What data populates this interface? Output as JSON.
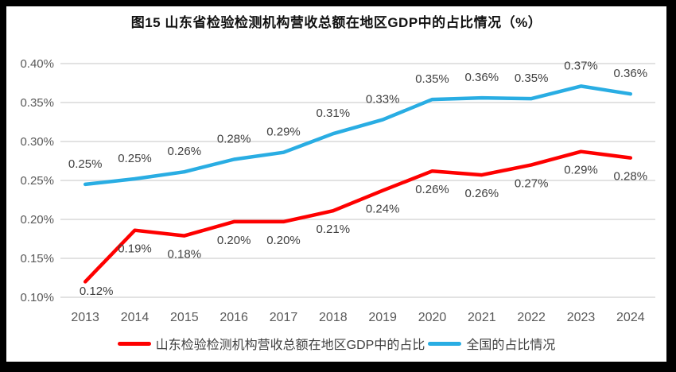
{
  "chart_data": {
    "type": "line",
    "title": "图15  山东省检验检测机构营收总额在地区GDP中的占比情况（%）",
    "unit": "%",
    "grid": "horizontal",
    "grid_color": "#d9d9d9",
    "background_color": "#ffffff",
    "frame_color": "#000000",
    "legend_position": "bottom",
    "ylim": [
      0.1,
      0.4
    ],
    "x_axis": {
      "categories": [
        "2013",
        "2014",
        "2015",
        "2016",
        "2017",
        "2018",
        "2019",
        "2020",
        "2021",
        "2022",
        "2023",
        "2024"
      ]
    },
    "y_axis": {
      "ticks": [
        {
          "label": "0.40%",
          "value": 0.4
        },
        {
          "label": "0.35%",
          "value": 0.35
        },
        {
          "label": "0.30%",
          "value": 0.3
        },
        {
          "label": "0.25%",
          "value": 0.25
        },
        {
          "label": "0.20%",
          "value": 0.2
        },
        {
          "label": "0.15%",
          "value": 0.15
        },
        {
          "label": "0.10%",
          "value": 0.1
        }
      ]
    },
    "series": [
      {
        "id": "shandong",
        "name": "山东检验检测机构营收总额在地区GDP中的占比",
        "color": "#fe0000",
        "label_position": "below",
        "values": [
          0.12,
          0.19,
          0.18,
          0.2,
          0.2,
          0.21,
          0.24,
          0.26,
          0.26,
          0.27,
          0.29,
          0.28
        ],
        "labels": [
          "0.12%",
          "0.19%",
          "0.18%",
          "0.20%",
          "0.20%",
          "0.21%",
          "0.24%",
          "0.26%",
          "0.26%",
          "0.27%",
          "0.29%",
          "0.28%"
        ],
        "plotted": [
          0.12,
          0.186,
          0.179,
          0.197,
          0.197,
          0.211,
          0.237,
          0.262,
          0.257,
          0.27,
          0.287,
          0.279
        ]
      },
      {
        "id": "national",
        "name": "全国的占比情况",
        "color": "#29ade3",
        "label_position": "above",
        "values": [
          0.25,
          0.25,
          0.26,
          0.28,
          0.29,
          0.31,
          0.33,
          0.35,
          0.36,
          0.35,
          0.37,
          0.36
        ],
        "labels": [
          "0.25%",
          "0.25%",
          "0.26%",
          "0.28%",
          "0.29%",
          "0.31%",
          "0.33%",
          "0.35%",
          "0.36%",
          "0.35%",
          "0.37%",
          "0.36%"
        ],
        "plotted": [
          0.245,
          0.252,
          0.261,
          0.277,
          0.286,
          0.31,
          0.328,
          0.354,
          0.356,
          0.355,
          0.371,
          0.361
        ]
      }
    ]
  }
}
